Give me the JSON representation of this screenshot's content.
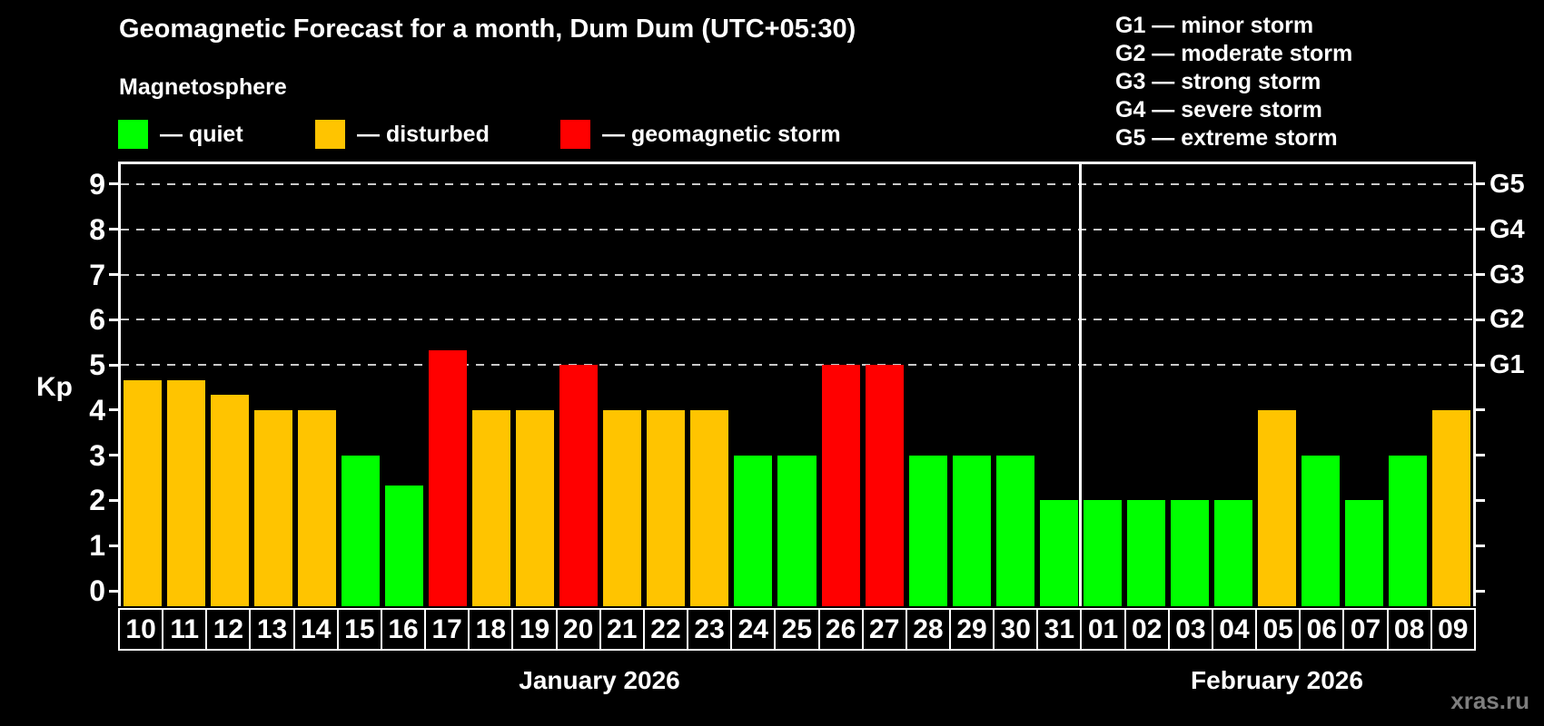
{
  "title": "Geomagnetic Forecast for a month, Dum Dum (UTC+05:30)",
  "subtitle": "Magnetosphere",
  "watermark": "xras.ru",
  "legend": [
    {
      "key": "quiet",
      "label": "— quiet",
      "color": "#00ff00"
    },
    {
      "key": "disturbed",
      "label": "— disturbed",
      "color": "#ffc400"
    },
    {
      "key": "storm",
      "label": "— geomagnetic storm",
      "color": "#ff0000"
    }
  ],
  "g_legend": [
    {
      "label": "G1 — minor storm"
    },
    {
      "label": "G2 — moderate storm"
    },
    {
      "label": "G3 — strong storm"
    },
    {
      "label": "G4 — severe storm"
    },
    {
      "label": "G5 — extreme storm"
    }
  ],
  "chart_data": {
    "type": "bar",
    "title": "Geomagnetic Forecast for a month, Dum Dum (UTC+05:30)",
    "ylabel": "Kp",
    "categories": [
      "10",
      "11",
      "12",
      "13",
      "14",
      "15",
      "16",
      "17",
      "18",
      "19",
      "20",
      "21",
      "22",
      "23",
      "24",
      "25",
      "26",
      "27",
      "28",
      "29",
      "30",
      "31",
      "01",
      "02",
      "03",
      "04",
      "05",
      "06",
      "07",
      "08",
      "09"
    ],
    "values": [
      4.67,
      4.67,
      4.33,
      4,
      4,
      3,
      2.33,
      5.33,
      4,
      4,
      5,
      4,
      4,
      4,
      3,
      3,
      5,
      5,
      3,
      3,
      3,
      2,
      2,
      2,
      2,
      2,
      4,
      3,
      2,
      3,
      4
    ],
    "status": [
      "disturbed",
      "disturbed",
      "disturbed",
      "disturbed",
      "disturbed",
      "quiet",
      "quiet",
      "storm",
      "disturbed",
      "disturbed",
      "storm",
      "disturbed",
      "disturbed",
      "disturbed",
      "quiet",
      "quiet",
      "storm",
      "storm",
      "quiet",
      "quiet",
      "quiet",
      "quiet",
      "quiet",
      "quiet",
      "quiet",
      "quiet",
      "disturbed",
      "quiet",
      "quiet",
      "quiet",
      "disturbed"
    ],
    "colors": {
      "quiet": "#00ff00",
      "disturbed": "#ffc400",
      "storm": "#ff0000"
    },
    "y_ticks": [
      0,
      1,
      2,
      3,
      4,
      5,
      6,
      7,
      8,
      9
    ],
    "gridlines_at": [
      5,
      6,
      7,
      8,
      9
    ],
    "right_axis_labels": [
      {
        "value": 5,
        "label": "G1"
      },
      {
        "value": 6,
        "label": "G2"
      },
      {
        "value": 7,
        "label": "G3"
      },
      {
        "value": 8,
        "label": "G4"
      },
      {
        "value": 9,
        "label": "G5"
      }
    ],
    "ylim": [
      -0.34,
      9.44
    ],
    "grid": "dashed horizontal lines at storm levels G1-G5",
    "legend_position": "top-left",
    "months": [
      {
        "name": "January 2026",
        "days": 22
      },
      {
        "name": "February 2026",
        "days": 9
      }
    ],
    "month_split_after_index": 21
  }
}
